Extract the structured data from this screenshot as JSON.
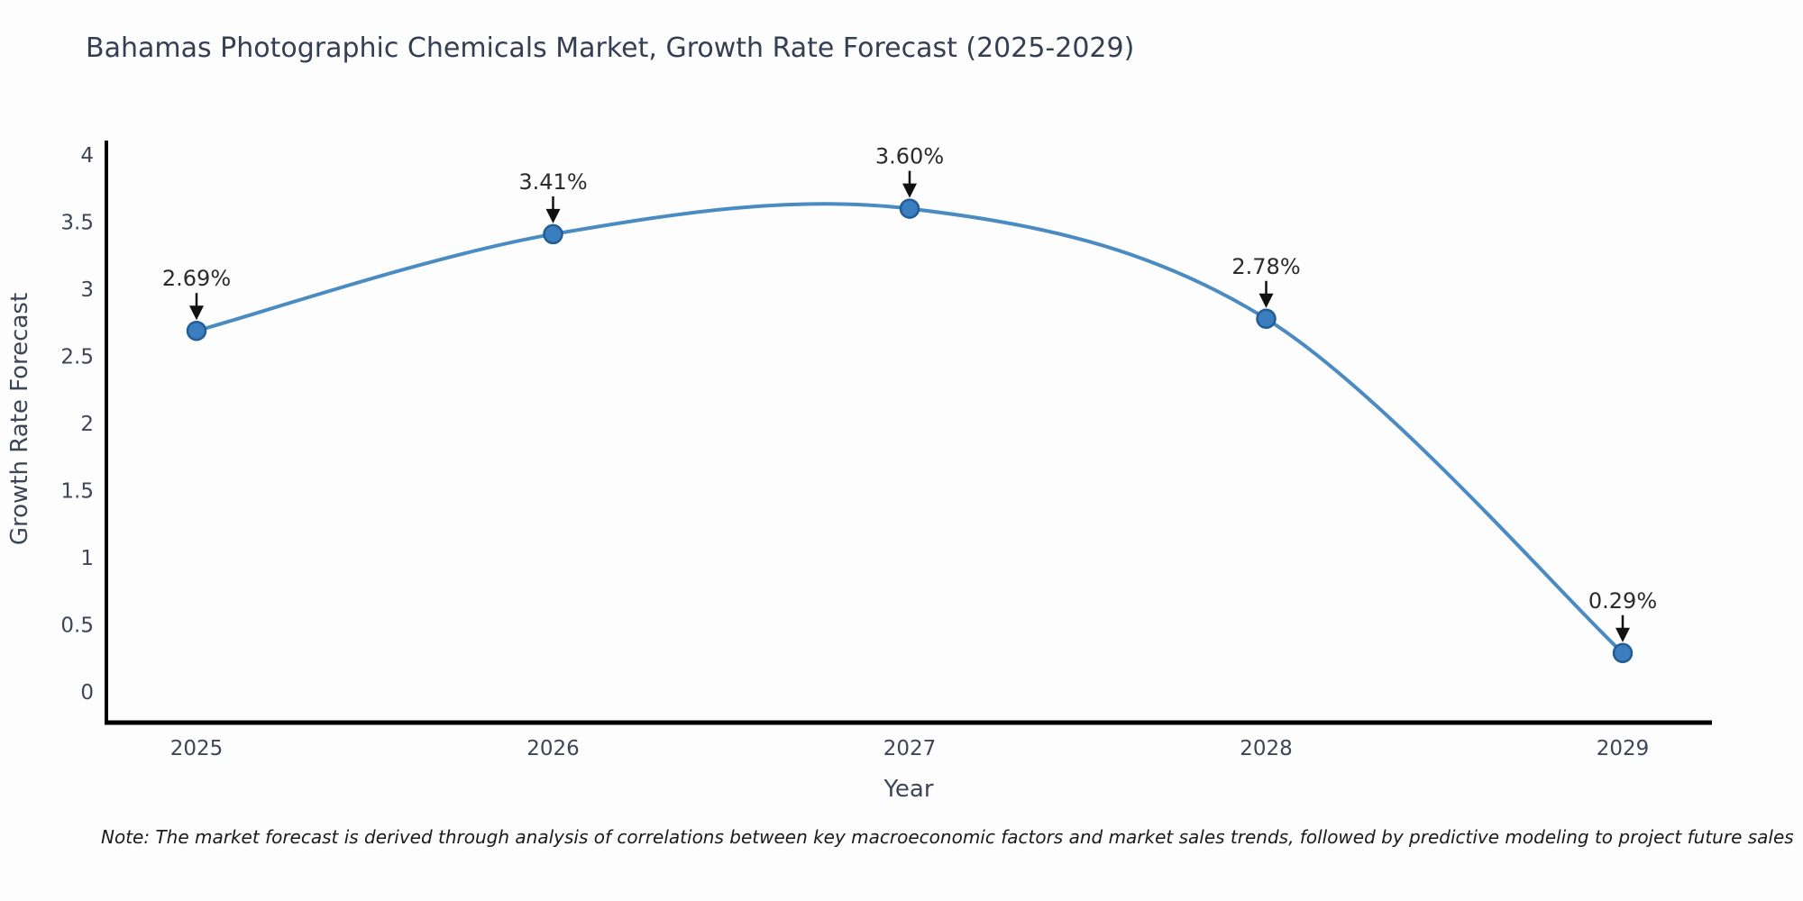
{
  "chart_data": {
    "type": "line",
    "title": "Bahamas Photographic Chemicals Market, Growth Rate Forecast (2025-2029)",
    "xlabel": "Year",
    "ylabel": "Growth Rate Forecast",
    "x": [
      "2025",
      "2026",
      "2027",
      "2028",
      "2029"
    ],
    "values": [
      2.69,
      3.41,
      3.6,
      2.78,
      0.29
    ],
    "point_labels": [
      "2.69%",
      "3.41%",
      "3.60%",
      "2.78%",
      "0.29%"
    ],
    "yticks": [
      "0",
      "0.5",
      "1",
      "1.5",
      "2",
      "2.5",
      "3",
      "3.5",
      "4"
    ],
    "ylim": [
      0,
      4
    ],
    "grid": false,
    "legend": "none",
    "line_color": "#4a8bc2",
    "marker_color": "#3a7ebf",
    "marker_edge_color": "#235d96",
    "annotation_text_color": "#2b2b2b",
    "annotation_arrow_color": "#111111",
    "axis_spine_color": "#000000",
    "tick_label_color": "#3d4657",
    "title_color": "#353f54"
  },
  "note": "Note: The market forecast is derived through analysis of correlations between key macroeconomic factors and market sales trends, followed by predictive modeling to project future sales"
}
